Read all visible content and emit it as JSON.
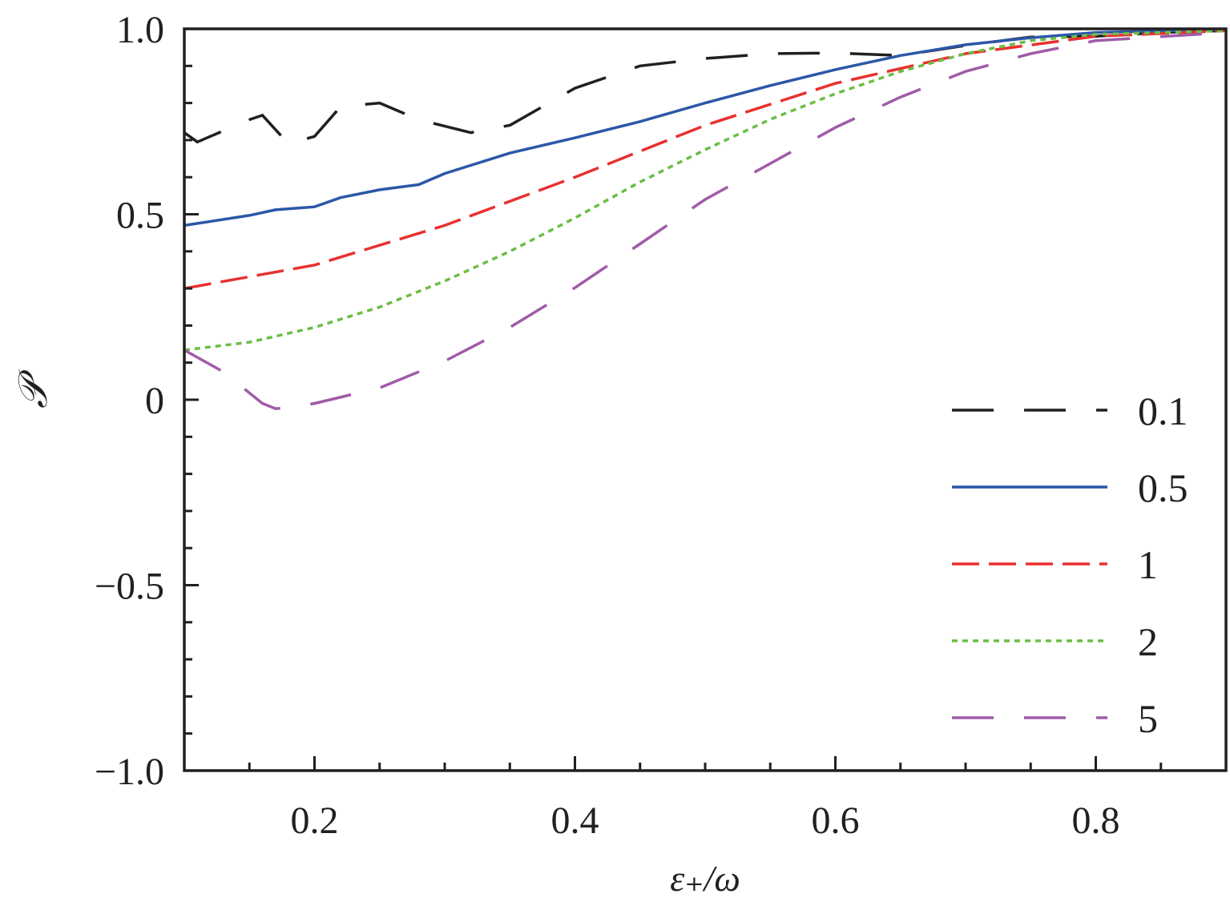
{
  "chart_data": {
    "type": "line",
    "title": "",
    "xlabel": "ε₊/ω",
    "ylabel": "𝒫",
    "xlim": [
      0.1,
      0.9
    ],
    "ylim": [
      -1.0,
      1.0
    ],
    "xticks": [
      0.2,
      0.4,
      0.6,
      0.8
    ],
    "xtick_labels": [
      "0.2",
      "0.4",
      "0.6",
      "0.8"
    ],
    "yticks": [
      -1.0,
      -0.5,
      0,
      0.5,
      1.0
    ],
    "ytick_labels": [
      "−1.0",
      "−0.5",
      "0",
      "0.5",
      "1.0"
    ],
    "grid": false,
    "legend_position": "right",
    "series": [
      {
        "name": "0.1",
        "color": "#231f20",
        "style": "long-dash",
        "x": [
          0.1,
          0.11,
          0.15,
          0.16,
          0.18,
          0.2,
          0.22,
          0.25,
          0.28,
          0.32,
          0.35,
          0.4,
          0.45,
          0.5,
          0.55,
          0.6,
          0.65,
          0.7,
          0.75,
          0.8,
          0.85,
          0.9
        ],
        "y": [
          0.72,
          0.695,
          0.755,
          0.767,
          0.69,
          0.71,
          0.79,
          0.8,
          0.755,
          0.72,
          0.74,
          0.84,
          0.9,
          0.92,
          0.933,
          0.935,
          0.928,
          0.955,
          0.978,
          0.98,
          0.99,
          0.995
        ]
      },
      {
        "name": "0.5",
        "color": "#2b57a7",
        "style": "solid",
        "x": [
          0.1,
          0.15,
          0.17,
          0.2,
          0.22,
          0.25,
          0.28,
          0.3,
          0.35,
          0.4,
          0.45,
          0.5,
          0.55,
          0.6,
          0.65,
          0.7,
          0.75,
          0.8,
          0.9
        ],
        "y": [
          0.47,
          0.497,
          0.512,
          0.52,
          0.545,
          0.566,
          0.58,
          0.61,
          0.665,
          0.706,
          0.75,
          0.8,
          0.847,
          0.89,
          0.928,
          0.957,
          0.976,
          0.99,
          0.998
        ]
      },
      {
        "name": "1",
        "color": "#e8312f",
        "style": "dash",
        "x": [
          0.1,
          0.2,
          0.3,
          0.4,
          0.5,
          0.6,
          0.7,
          0.8,
          0.9
        ],
        "y": [
          0.3,
          0.363,
          0.47,
          0.6,
          0.74,
          0.853,
          0.933,
          0.98,
          0.995
        ]
      },
      {
        "name": "2",
        "color": "#6cbd45",
        "style": "dotted",
        "x": [
          0.1,
          0.15,
          0.2,
          0.25,
          0.3,
          0.35,
          0.4,
          0.45,
          0.5,
          0.55,
          0.6,
          0.65,
          0.7,
          0.75,
          0.8,
          0.9
        ],
        "y": [
          0.134,
          0.155,
          0.195,
          0.25,
          0.32,
          0.4,
          0.49,
          0.587,
          0.674,
          0.756,
          0.825,
          0.885,
          0.933,
          0.968,
          0.985,
          0.995
        ]
      },
      {
        "name": "5",
        "color": "#a05ba8",
        "style": "long-dash",
        "x": [
          0.1,
          0.13,
          0.16,
          0.17,
          0.18,
          0.2,
          0.25,
          0.3,
          0.35,
          0.4,
          0.45,
          0.5,
          0.55,
          0.6,
          0.65,
          0.7,
          0.75,
          0.8,
          0.9
        ],
        "y": [
          0.134,
          0.075,
          -0.01,
          -0.024,
          -0.022,
          -0.01,
          0.032,
          0.104,
          0.195,
          0.302,
          0.42,
          0.54,
          0.637,
          0.734,
          0.816,
          0.885,
          0.933,
          0.968,
          0.99
        ]
      }
    ]
  }
}
